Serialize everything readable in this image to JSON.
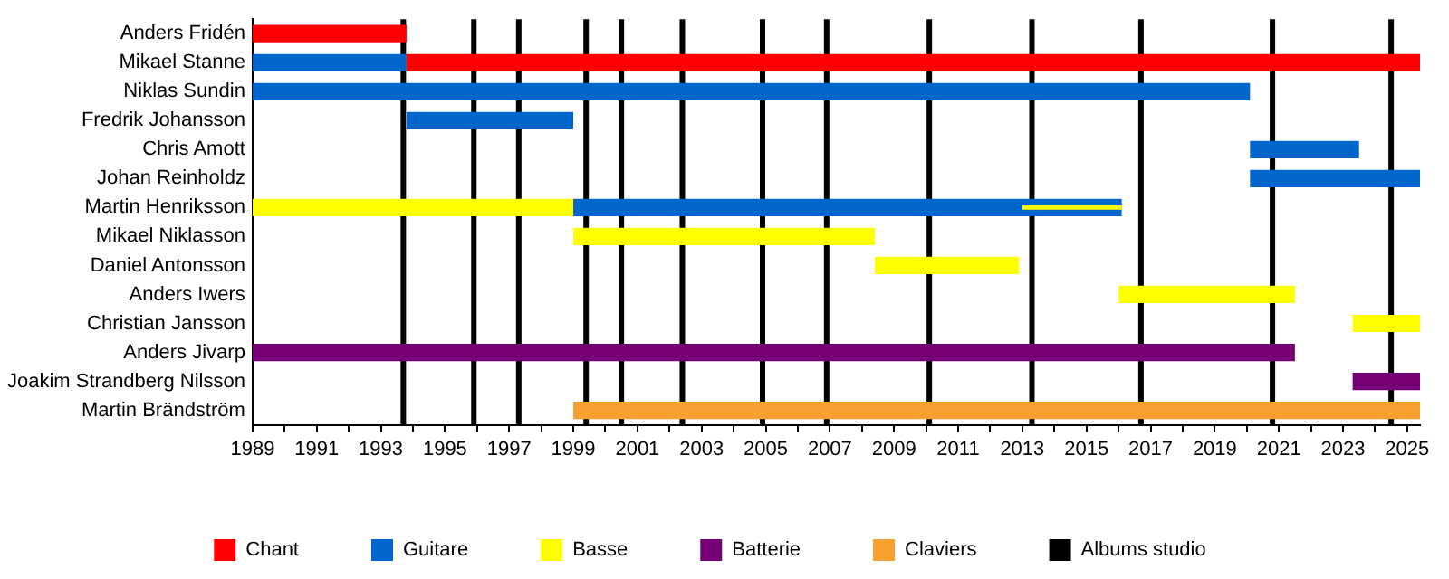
{
  "chart_data": {
    "type": "bar",
    "orientation": "horizontal",
    "legend": "bottom",
    "grid": false,
    "categories": [
      "Anders Fridén",
      "Mikael Stanne",
      "Niklas Sundin",
      "Fredrik Johansson",
      "Chris Amott",
      "Johan Reinholdz",
      "Martin Henriksson",
      "Mikael Niklasson",
      "Daniel Antonsson",
      "Anders Iwers",
      "Christian Jansson",
      "Anders Jivarp",
      "Joakim Strandberg Nilsson",
      "Martin Brändström"
    ],
    "xlim": [
      1989,
      2025.4
    ],
    "xticks": [
      1989,
      {
        "value": 1990,
        "label": null
      },
      1991,
      {
        "value": 1992,
        "label": null
      },
      1993,
      {
        "value": 1994,
        "label": null
      },
      1995,
      {
        "value": 1996,
        "label": null
      },
      1997,
      {
        "value": 1998,
        "label": null
      },
      1999,
      {
        "value": 2000,
        "label": null
      },
      2001,
      {
        "value": 2002,
        "label": null
      },
      2003,
      {
        "value": 2004,
        "label": null
      },
      2005,
      {
        "value": 2006,
        "label": null
      },
      2007,
      {
        "value": 2008,
        "label": null
      },
      2009,
      {
        "value": 2010,
        "label": null
      },
      2011,
      {
        "value": 2012,
        "label": null
      },
      2013,
      {
        "value": 2014,
        "label": null
      },
      2015,
      {
        "value": 2016,
        "label": null
      },
      2017,
      {
        "value": 2018,
        "label": null
      },
      2019,
      {
        "value": 2020,
        "label": null
      },
      2021,
      {
        "value": 2022,
        "label": null
      },
      2023,
      {
        "value": 2024,
        "label": null
      },
      2025
    ],
    "series": [
      {
        "name": "Chant",
        "color": "#ff0000",
        "base": [
          1989,
          1993.8,
          null,
          null,
          null,
          null,
          null,
          null,
          null,
          null,
          null,
          null,
          null,
          null
        ],
        "values": [
          4.8,
          31.6,
          null,
          null,
          null,
          null,
          null,
          null,
          null,
          null,
          null,
          null,
          null,
          null
        ]
      },
      {
        "name": "Guitare",
        "color": "#0066cc",
        "base": [
          null,
          1989,
          1989,
          1993.8,
          2020.1,
          2020.1,
          1999,
          null,
          null,
          null,
          null,
          null,
          null,
          null
        ],
        "values": [
          null,
          4.8,
          31.1,
          5.2,
          3.4,
          5.3,
          17.1,
          null,
          null,
          null,
          null,
          null,
          null,
          null
        ]
      },
      {
        "name": "Basse",
        "color": "#ffff00",
        "base": [
          null,
          null,
          null,
          null,
          null,
          null,
          1989,
          1999,
          2008.4,
          2016,
          2023.3,
          null,
          null,
          null
        ],
        "values": [
          null,
          null,
          null,
          null,
          null,
          null,
          10,
          9.4,
          4.5,
          5.5,
          2.1,
          null,
          null,
          null
        ]
      },
      {
        "name": "Batterie",
        "color": "#770077",
        "base": [
          null,
          null,
          null,
          null,
          null,
          null,
          null,
          null,
          null,
          null,
          null,
          1989,
          2023.3,
          null
        ],
        "values": [
          null,
          null,
          null,
          null,
          null,
          null,
          null,
          null,
          null,
          null,
          null,
          32.5,
          2.1,
          null
        ]
      },
      {
        "name": "Claviers",
        "color": "#f7a030",
        "base": [
          null,
          null,
          null,
          null,
          null,
          null,
          null,
          null,
          null,
          null,
          null,
          null,
          null,
          1999
        ],
        "values": [
          null,
          null,
          null,
          null,
          null,
          null,
          null,
          null,
          null,
          null,
          null,
          null,
          null,
          26.4
        ]
      },
      {
        "color": "#ffff00",
        "base": [
          null,
          null,
          null,
          null,
          null,
          null,
          2013,
          null,
          null,
          null,
          null,
          null,
          null,
          null
        ],
        "values": [
          null,
          null,
          null,
          null,
          null,
          null,
          3.1,
          null,
          null,
          null,
          null,
          null,
          null,
          null
        ]
      }
    ],
    "ref_lines": [
      {
        "axis": "x",
        "value": 1993.7,
        "label": "Albums studio",
        "color": "#000000"
      },
      {
        "axis": "x",
        "value": 1995.9,
        "color": "#000000"
      },
      {
        "axis": "x",
        "value": 1997.3,
        "color": "#000000"
      },
      {
        "axis": "x",
        "value": 1999.4,
        "color": "#000000"
      },
      {
        "axis": "x",
        "value": 2000.5,
        "color": "#000000"
      },
      {
        "axis": "x",
        "value": 2002.4,
        "color": "#000000"
      },
      {
        "axis": "x",
        "value": 2004.9,
        "color": "#000000"
      },
      {
        "axis": "x",
        "value": 2006.9,
        "color": "#000000"
      },
      {
        "axis": "x",
        "value": 2010.1,
        "color": "#000000"
      },
      {
        "axis": "x",
        "value": 2013.3,
        "color": "#000000"
      },
      {
        "axis": "x",
        "value": 2016.7,
        "color": "#000000"
      },
      {
        "axis": "x",
        "value": 2020.8,
        "color": "#000000"
      },
      {
        "axis": "x",
        "value": 2024.5,
        "color": "#000000"
      }
    ]
  }
}
